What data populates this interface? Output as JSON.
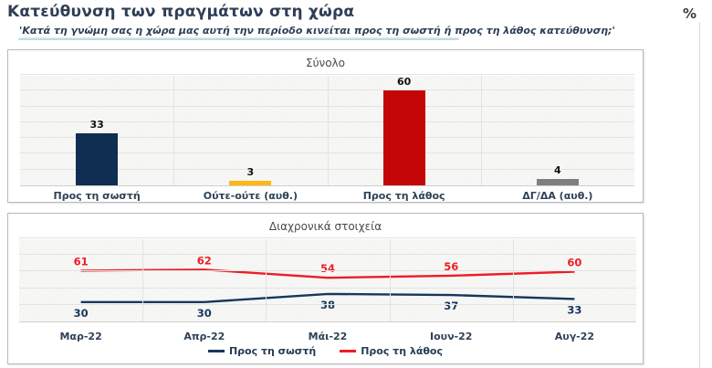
{
  "header": {
    "title": "Κατεύθυνση των πραγμάτων στη χώρα",
    "subtitle": "'Κατά τη γνώμη σας η χώρα μας αυτή την περίοδο κινείται προς τη σωστή ή προς τη λάθος κατεύθυνση;'",
    "unit_label": "%"
  },
  "colors": {
    "title_text": "#2f3e55",
    "bar_right_direction": "#0f2e52",
    "bar_neither": "#fdb813",
    "bar_wrong_direction": "#c40606",
    "bar_dont_know": "#7f7f7f",
    "line_right_direction": "#17375e",
    "line_wrong_direction": "#ee1c25",
    "subtitle_highlight": "#b4d3da"
  },
  "chart_data": [
    {
      "type": "bar",
      "title": "Σύνολο",
      "categories": [
        "Προς τη σωστή",
        "Ούτε-ούτε (αυθ.)",
        "Προς τη λάθος",
        "ΔΓ/ΔΑ (αυθ.)"
      ],
      "values": [
        33,
        3,
        60,
        4
      ],
      "bar_colors": [
        "#0f2e52",
        "#fdb813",
        "#c40606",
        "#7f7f7f"
      ],
      "ylim": [
        0,
        70
      ],
      "grid": true,
      "data_labels": true,
      "xlabel": "",
      "ylabel": ""
    },
    {
      "type": "line",
      "title": "Διαχρονικά στοιχεία",
      "categories": [
        "Μαρ-22",
        "Απρ-22",
        "Μάι-22",
        "Ιουν-22",
        "Αυγ-22"
      ],
      "series": [
        {
          "name": "Προς τη σωστή",
          "color": "#17375e",
          "values": [
            30,
            30,
            38,
            37,
            33
          ],
          "label_position": "below"
        },
        {
          "name": "Προς τη λάθος",
          "color": "#ee1c25",
          "values": [
            61,
            62,
            54,
            56,
            60
          ],
          "label_position": "above"
        }
      ],
      "ylim": [
        10,
        92
      ],
      "grid": true,
      "data_labels": true,
      "legend_position": "bottom",
      "xlabel": "",
      "ylabel": ""
    }
  ]
}
